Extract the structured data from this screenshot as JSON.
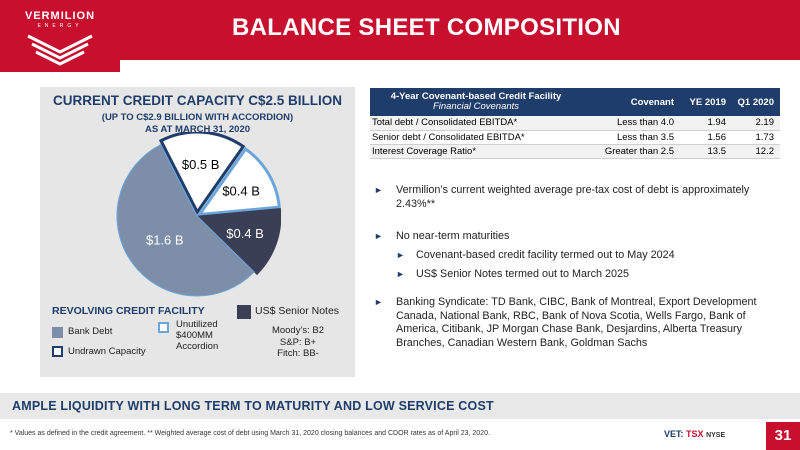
{
  "logo": {
    "name": "VERMILION",
    "sub": "ENERGY"
  },
  "header": {
    "title": "BALANCE SHEET COMPOSITION"
  },
  "left": {
    "title": "CURRENT CREDIT CAPACITY C$2.5 BILLION",
    "subtitle1": "(UP TO C$2.9 BILLION WITH ACCORDION)",
    "subtitle2": "AS AT MARCH 31, 2020",
    "revolving_title": "REVOLVING CREDIT FACILITY",
    "legend": {
      "bank_debt": "Bank Debt",
      "undrawn": "Undrawn Capacity",
      "unutilized_line1": "Unutilized",
      "unutilized_line2": "$400MM",
      "unutilized_line3": "Accordion",
      "usd_notes": "US$ Senior Notes"
    },
    "ratings": {
      "moodys": "Moody’s: B2",
      "sp": "S&P: B+",
      "fitch": "Fitch: BB-"
    }
  },
  "chart_data": {
    "type": "pie",
    "slices": [
      {
        "label": "$1.6 B",
        "value": 1.6,
        "color": "#7d8ea8"
      },
      {
        "label": "$0.5 B",
        "value": 0.5,
        "color": "#ffffff"
      },
      {
        "label": "$0.4 B",
        "value": 0.4,
        "color": "#ffffff"
      },
      {
        "label": "$0.4 B",
        "value": 0.4,
        "color": "#3a3f55"
      }
    ]
  },
  "table": {
    "header_title": "4-Year Covenant-based Credit Facility",
    "header_sub": "Financial Covenants",
    "col_covenant": "Covenant",
    "col_ye": "YE 2019",
    "col_q1": "Q1 2020",
    "rows": [
      {
        "label": "Total debt / Consolidated EBITDA*",
        "covenant": "Less than 4.0",
        "ye": "1.94",
        "q1": "2.19"
      },
      {
        "label": "Senior debt / Consolidated EBITDA*",
        "covenant": "Less than 3.5",
        "ye": "1.56",
        "q1": "1.73"
      },
      {
        "label": "Interest Coverage Ratio*",
        "covenant": "Greater than 2.5",
        "ye": "13.5",
        "q1": "12.2"
      }
    ]
  },
  "bullets": {
    "b1": "Vermilion’s current weighted average pre-tax cost of debt is approximately 2.43%**",
    "b2": "No near-term maturities",
    "b2a": "Covenant-based credit facility termed out to May 2024",
    "b2b": "US$ Senior Notes termed out to March 2025",
    "b3": "Banking Syndicate: TD Bank, CIBC, Bank of Montreal, Export Development Canada, National Bank, RBC, Bank of Nova Scotia, Wells Fargo, Bank of America, Citibank, JP Morgan Chase Bank, Desjardins, Alberta Treasury Branches, Canadian Western Bank, Goldman Sachs"
  },
  "banner": {
    "text": "AMPLE LIQUIDITY WITH LONG TERM TO MATURITY AND LOW SERVICE COST"
  },
  "footer": {
    "footnote": "* Values as defined in the credit agreement.  ** Weighted average cost of debt using March 31, 2020 closing balances and CDOR rates as of April 23, 2020.",
    "ticker_vet": "VET:",
    "ticker_tsx": "TSX",
    "ticker_nyse": "NYSE",
    "page": "31"
  }
}
